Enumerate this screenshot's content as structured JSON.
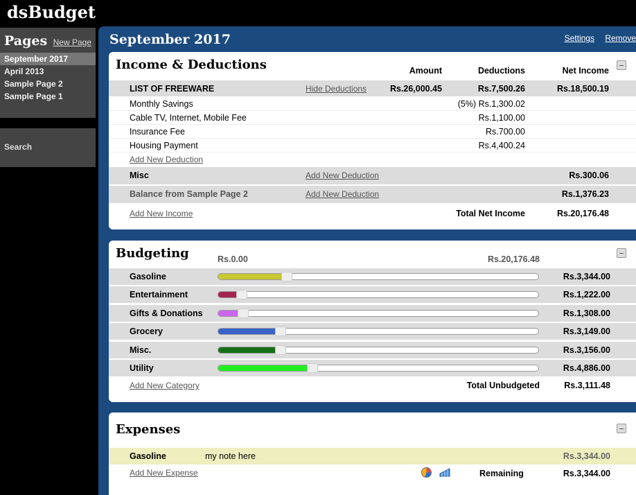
{
  "app": {
    "title": "dsBudget"
  },
  "sidebar": {
    "title": "Pages",
    "new_page": "New Page",
    "pages": [
      {
        "label": "September 2017",
        "active": true
      },
      {
        "label": "April 2013",
        "active": false
      },
      {
        "label": "Sample Page 2",
        "active": false
      },
      {
        "label": "Sample Page 1",
        "active": false
      }
    ],
    "search": "Search"
  },
  "main": {
    "title": "September 2017",
    "settings": "Settings",
    "remove": "Remove"
  },
  "income": {
    "title": "Income & Deductions",
    "headers": {
      "amount": "Amount",
      "deductions": "Deductions",
      "net": "Net Income"
    },
    "freeware": {
      "name": "LIST OF FREEWARE",
      "link": "Hide Deductions",
      "amount": "Rs.26,000.45",
      "deductions": "Rs.7,500.26",
      "net": "Rs.18,500.19"
    },
    "deductions": [
      {
        "name": "Monthly Savings",
        "value": "(5%) Rs.1,300.02"
      },
      {
        "name": "Cable TV, Internet, Mobile Fee",
        "value": "Rs.1,100.00"
      },
      {
        "name": "Insurance Fee",
        "value": "Rs.700.00"
      },
      {
        "name": "Housing Payment",
        "value": "Rs.4,400.24"
      }
    ],
    "add_deduction": "Add New Deduction",
    "misc": {
      "name": "Misc",
      "link": "Add New Deduction",
      "net": "Rs.300.06"
    },
    "balance": {
      "name": "Balance from Sample Page 2",
      "link": "Add New Deduction",
      "net": "Rs.1,376.23"
    },
    "add_income": "Add New Income",
    "total_label": "Total Net Income",
    "total_value": "Rs.20,176.48"
  },
  "budgeting": {
    "title": "Budgeting",
    "scale_min": "Rs.0.00",
    "scale_max": "Rs.20,176.48",
    "categories": [
      {
        "name": "Gasoline",
        "value": "Rs.3,344.00",
        "fraction": 0.2,
        "color": "#c8c832"
      },
      {
        "name": "Entertainment",
        "value": "Rs.1,222.00",
        "fraction": 0.06,
        "color": "#a32550"
      },
      {
        "name": "Gifts & Donations",
        "value": "Rs.1,308.00",
        "fraction": 0.065,
        "color": "#cc66ee"
      },
      {
        "name": "Grocery",
        "value": "Rs.3,149.00",
        "fraction": 0.18,
        "color": "#3a62c8"
      },
      {
        "name": "Misc.",
        "value": "Rs.3,156.00",
        "fraction": 0.18,
        "color": "#157015"
      },
      {
        "name": "Utility",
        "value": "Rs.4,886.00",
        "fraction": 0.28,
        "color": "#22ee22"
      }
    ],
    "add_category": "Add New Category",
    "total_label": "Total Unbudgeted",
    "total_value": "Rs.3,111.48"
  },
  "expenses": {
    "title": "Expenses",
    "rows": [
      {
        "name": "Gasoline",
        "note": "my note here",
        "value": "Rs.3,344.00"
      }
    ],
    "add_expense": "Add New Expense",
    "remaining_label": "Remaining",
    "remaining_value": "Rs.3,344.00",
    "icons": [
      "pie-chart-icon",
      "bar-chart-icon"
    ]
  }
}
